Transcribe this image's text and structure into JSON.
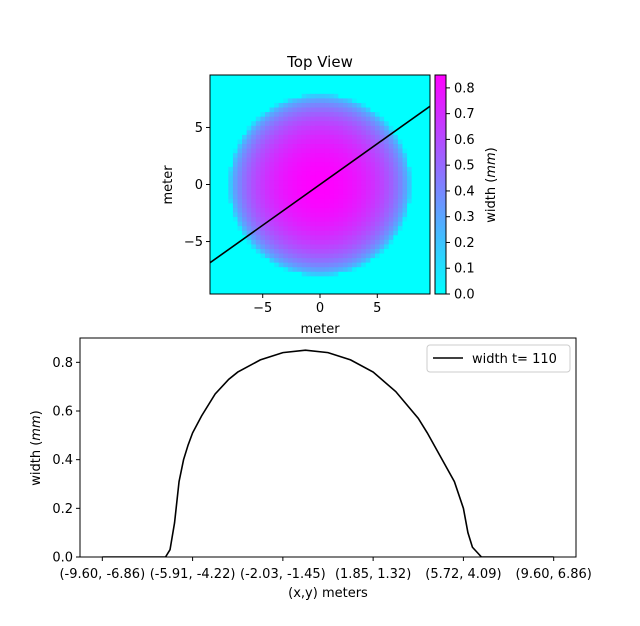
{
  "colors": {
    "cool_start": "#00ffff",
    "cool_end": "#ff00ff",
    "line": "#000000"
  },
  "chart_data": [
    {
      "type": "heatmap",
      "title": "Top View",
      "xlabel": "meter",
      "ylabel": "meter",
      "xlim": [
        -9.6,
        9.6
      ],
      "ylim": [
        -9.6,
        9.6
      ],
      "xticks": [
        -5,
        0,
        5
      ],
      "yticks": [
        5,
        0,
        -5
      ],
      "xtick_labels": [
        "−5",
        "0",
        "5"
      ],
      "ytick_labels": [
        "5",
        "0",
        "−5"
      ],
      "colormap": "cool",
      "surface": {
        "shape": "disc",
        "center": [
          0,
          0
        ],
        "radius": 8.0,
        "peak": 0.85,
        "floor": 0.0,
        "grid_cells": 48
      },
      "transect": {
        "from": [
          -9.6,
          -6.86
        ],
        "to": [
          9.6,
          6.86
        ]
      },
      "colorbar": {
        "label_prefix": "width (",
        "label_unit": "mm",
        "label_suffix": ")",
        "range": [
          0,
          0.85
        ],
        "ticks": [
          0.0,
          0.1,
          0.2,
          0.3,
          0.4,
          0.5,
          0.6,
          0.7,
          0.8
        ],
        "tick_labels": [
          "0.0",
          "0.1",
          "0.2",
          "0.3",
          "0.4",
          "0.5",
          "0.6",
          "0.7",
          "0.8"
        ]
      }
    },
    {
      "type": "line",
      "title": "",
      "xlabel": "(x,y) meters",
      "ylabel_prefix": "width (",
      "ylabel_unit": "mm",
      "ylabel_suffix": ")",
      "xlim": [
        0,
        1
      ],
      "ylim": [
        0,
        0.9
      ],
      "yticks": [
        0.0,
        0.2,
        0.4,
        0.6,
        0.8
      ],
      "ytick_labels": [
        "0.0",
        "0.2",
        "0.4",
        "0.6",
        "0.8"
      ],
      "xticks": [
        0.0,
        0.2,
        0.4,
        0.6,
        0.8,
        1.0
      ],
      "xtick_labels": [
        "(-9.60, -6.86)",
        "(-5.91, -4.22)",
        "(-2.03, -1.45)",
        "(1.85, 1.32)",
        "(5.72, 4.09)",
        "(9.60, 6.86)"
      ],
      "legend": "top-right",
      "series": [
        {
          "name": "width t= 110",
          "x": [
            0.0,
            0.05,
            0.1,
            0.14,
            0.15,
            0.16,
            0.17,
            0.18,
            0.19,
            0.2,
            0.22,
            0.25,
            0.28,
            0.3,
            0.35,
            0.4,
            0.45,
            0.5,
            0.55,
            0.6,
            0.65,
            0.7,
            0.72,
            0.75,
            0.78,
            0.8,
            0.81,
            0.82,
            0.83,
            0.84,
            0.85,
            0.86,
            0.9,
            0.95,
            1.0
          ],
          "y": [
            0.0,
            0.0,
            0.0,
            0.0,
            0.03,
            0.14,
            0.31,
            0.4,
            0.46,
            0.51,
            0.58,
            0.67,
            0.73,
            0.76,
            0.81,
            0.84,
            0.85,
            0.84,
            0.81,
            0.76,
            0.68,
            0.57,
            0.51,
            0.41,
            0.31,
            0.2,
            0.1,
            0.04,
            0.02,
            0.0,
            0.0,
            0.0,
            0.0,
            0.0,
            0.0
          ]
        }
      ]
    }
  ]
}
